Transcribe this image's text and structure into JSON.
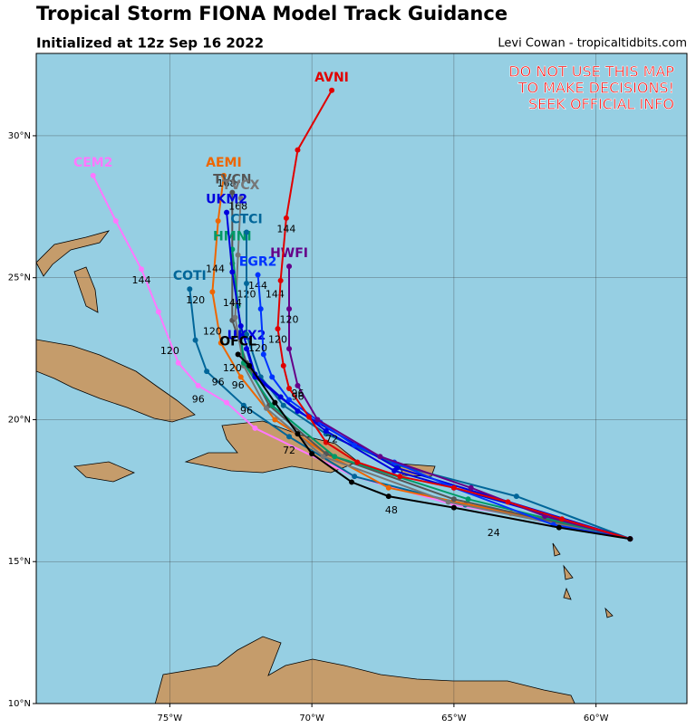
{
  "header": {
    "title": "Tropical Storm FIONA Model Track Guidance",
    "subtitle": "Initialized at 12z Sep 16 2022",
    "credit": "Levi Cowan - tropicaltidbits.com"
  },
  "warning": [
    "DO NOT USE THIS MAP",
    "TO MAKE DECISIONS!",
    "SEEK OFFICIAL INFO"
  ],
  "map": {
    "lonlim": [
      -79.7,
      -56.8
    ],
    "latlim": [
      10,
      32.9
    ],
    "lonticks": [
      {
        "value": -75,
        "label": "75°W"
      },
      {
        "value": -70,
        "label": "70°W"
      },
      {
        "value": -65,
        "label": "65°W"
      },
      {
        "value": -60,
        "label": "60°W"
      }
    ],
    "latticks": [
      {
        "value": 10,
        "label": "10°N"
      },
      {
        "value": 15,
        "label": "15°N"
      },
      {
        "value": 20,
        "label": "20°N"
      },
      {
        "value": 25,
        "label": "25°N"
      },
      {
        "value": 30,
        "label": "30°N"
      }
    ],
    "grid": true,
    "tracks": [
      {
        "name": "CEM2",
        "color": "#ff77ff",
        "lon": [
          -58.8,
          -62.0,
          -65.0,
          -68.5,
          -72.0,
          -73.0,
          -74.0,
          -74.7,
          -75.4,
          -76.0,
          -76.9,
          -77.7
        ],
        "lat": [
          15.8,
          16.5,
          17.0,
          18.0,
          19.7,
          20.6,
          21.2,
          22.0,
          23.8,
          25.3,
          27.0,
          28.6
        ],
        "labels": [
          {
            "text": "144",
            "lon": -76.0,
            "lat": 24.9
          },
          {
            "text": "120",
            "lon": -75.0,
            "lat": 22.4
          },
          {
            "text": "96",
            "lon": -74.0,
            "lat": 20.7
          }
        ]
      },
      {
        "name": "COTI",
        "color": "#006699",
        "lon": [
          -58.8,
          -64.6,
          -68.5,
          -70.8,
          -72.4,
          -73.7,
          -74.1,
          -74.3
        ],
        "lat": [
          15.8,
          17.0,
          18.0,
          19.4,
          20.5,
          21.7,
          22.8,
          24.6
        ],
        "labels": [
          {
            "text": "120",
            "lon": -74.1,
            "lat": 24.2
          },
          {
            "text": "96",
            "lon": -73.3,
            "lat": 21.3
          }
        ]
      },
      {
        "name": "AEMI",
        "color": "#ee6600",
        "lon": [
          -58.8,
          -63.0,
          -67.3,
          -69.5,
          -71.3,
          -72.5,
          -73.2,
          -73.5,
          -73.3,
          -73.1
        ],
        "lat": [
          15.8,
          16.7,
          17.6,
          18.8,
          20.0,
          21.5,
          22.7,
          24.5,
          27.0,
          28.6
        ],
        "labels": [
          {
            "text": "168",
            "lon": -73.0,
            "lat": 28.3
          },
          {
            "text": "144",
            "lon": -73.4,
            "lat": 25.3
          },
          {
            "text": "120",
            "lon": -73.5,
            "lat": 23.1
          }
        ]
      },
      {
        "name": "TVCN",
        "color": "#555555",
        "lon": [
          -58.8,
          -65.0,
          -69.5,
          -71.5,
          -72.3,
          -72.8,
          -72.8,
          -72.8
        ],
        "lat": [
          15.8,
          17.2,
          18.8,
          20.5,
          22.0,
          23.5,
          25.5,
          28.0
        ],
        "labels": [
          {
            "text": "168",
            "lon": -72.6,
            "lat": 27.5
          }
        ]
      },
      {
        "name": "TVCX",
        "color": "#777777",
        "lon": [
          -58.8,
          -65.2,
          -69.6,
          -71.6,
          -72.4,
          -72.7,
          -72.6,
          -72.5
        ],
        "lat": [
          15.8,
          17.1,
          18.7,
          20.4,
          21.9,
          23.6,
          25.8,
          27.8
        ],
        "labels": []
      },
      {
        "name": "HMNI",
        "color": "#009966",
        "lon": [
          -58.8,
          -64.5,
          -69.2,
          -71.4,
          -72.4,
          -72.6,
          -72.8
        ],
        "lat": [
          15.8,
          17.2,
          18.7,
          20.5,
          22.0,
          24.0,
          26.0
        ],
        "labels": [
          {
            "text": "120",
            "lon": -72.3,
            "lat": 24.4
          }
        ]
      },
      {
        "name": "CTCI",
        "color": "#006699",
        "lon": [
          -58.8,
          -62.8,
          -67.0,
          -69.5,
          -71.0,
          -71.8,
          -72.3,
          -72.3,
          -72.3
        ],
        "lat": [
          15.8,
          17.3,
          18.4,
          19.5,
          20.5,
          21.5,
          23.0,
          24.8,
          26.6
        ],
        "labels": [
          {
            "text": "144",
            "lon": -71.9,
            "lat": 24.7
          }
        ]
      },
      {
        "name": "UKM2",
        "color": "#0000dd",
        "lon": [
          -58.8,
          -67.1,
          -69.5,
          -71.1,
          -72.0,
          -72.5,
          -72.8,
          -73.0
        ],
        "lat": [
          15.8,
          18.2,
          19.6,
          20.8,
          21.6,
          23.3,
          25.2,
          27.3
        ],
        "labels": [
          {
            "text": "144",
            "lon": -72.8,
            "lat": 24.1
          },
          {
            "text": "96",
            "lon": -72.6,
            "lat": 21.2
          }
        ]
      },
      {
        "name": "UKX2",
        "color": "#0000dd",
        "lon": [
          -58.8,
          -67.0,
          -70.5,
          -72.0,
          -72.3
        ],
        "lat": [
          15.8,
          18.3,
          20.3,
          21.5,
          22.5
        ],
        "labels": []
      },
      {
        "name": "EGR2",
        "color": "#0033ff",
        "lon": [
          -58.8,
          -61.5,
          -65.0,
          -67.1,
          -68.5,
          -69.7,
          -70.8,
          -71.4,
          -71.7,
          -71.8,
          -71.9
        ],
        "lat": [
          15.8,
          16.3,
          17.6,
          18.5,
          19.1,
          19.9,
          20.7,
          21.5,
          22.3,
          23.9,
          25.1
        ],
        "labels": [
          {
            "text": "144",
            "lon": -71.3,
            "lat": 24.4
          },
          {
            "text": "120",
            "lon": -71.9,
            "lat": 22.5
          }
        ]
      },
      {
        "name": "HWFI",
        "color": "#660088",
        "lon": [
          -58.8,
          -61.8,
          -64.4,
          -67.6,
          -69.8,
          -70.5,
          -70.8,
          -70.8,
          -70.8
        ],
        "lat": [
          15.8,
          16.6,
          17.6,
          18.7,
          20.0,
          21.2,
          22.5,
          23.9,
          25.4
        ],
        "labels": [
          {
            "text": "120",
            "lon": -70.8,
            "lat": 23.5
          },
          {
            "text": "96",
            "lon": -70.5,
            "lat": 20.9
          }
        ]
      },
      {
        "name": "AVNI",
        "color": "#e00000",
        "lon": [
          -58.8,
          -61.2,
          -63.1,
          -65.0,
          -66.9,
          -68.4,
          -69.5,
          -70.1,
          -70.8,
          -71.0,
          -71.2,
          -71.1,
          -70.9,
          -70.5,
          -69.3
        ],
        "lat": [
          15.8,
          16.5,
          17.1,
          17.6,
          18.0,
          18.5,
          19.2,
          20.1,
          21.1,
          21.9,
          23.2,
          24.9,
          27.1,
          29.5,
          31.6
        ],
        "labels": [
          {
            "text": "144",
            "lon": -70.9,
            "lat": 26.7
          },
          {
            "text": "120",
            "lon": -71.2,
            "lat": 22.8
          },
          {
            "text": "96",
            "lon": -70.5,
            "lat": 20.8
          },
          {
            "text": "72",
            "lon": -69.3,
            "lat": 19.3
          }
        ]
      },
      {
        "name": "OFCL",
        "color": "#000000",
        "lon": [
          -58.8,
          -61.3,
          -65.0,
          -67.3,
          -68.6,
          -70.0,
          -70.5,
          -71.3,
          -72.2,
          -72.6
        ],
        "lat": [
          15.8,
          16.2,
          16.9,
          17.3,
          17.8,
          18.8,
          19.5,
          20.6,
          21.9,
          22.3
        ],
        "labels": [
          {
            "text": "24",
            "lon": -63.6,
            "lat": 16.0
          },
          {
            "text": "48",
            "lon": -67.2,
            "lat": 16.8
          },
          {
            "text": "72",
            "lon": -70.8,
            "lat": 18.9
          },
          {
            "text": "96",
            "lon": -72.3,
            "lat": 20.3
          },
          {
            "text": "120",
            "lon": -72.8,
            "lat": 21.8
          }
        ]
      }
    ]
  }
}
